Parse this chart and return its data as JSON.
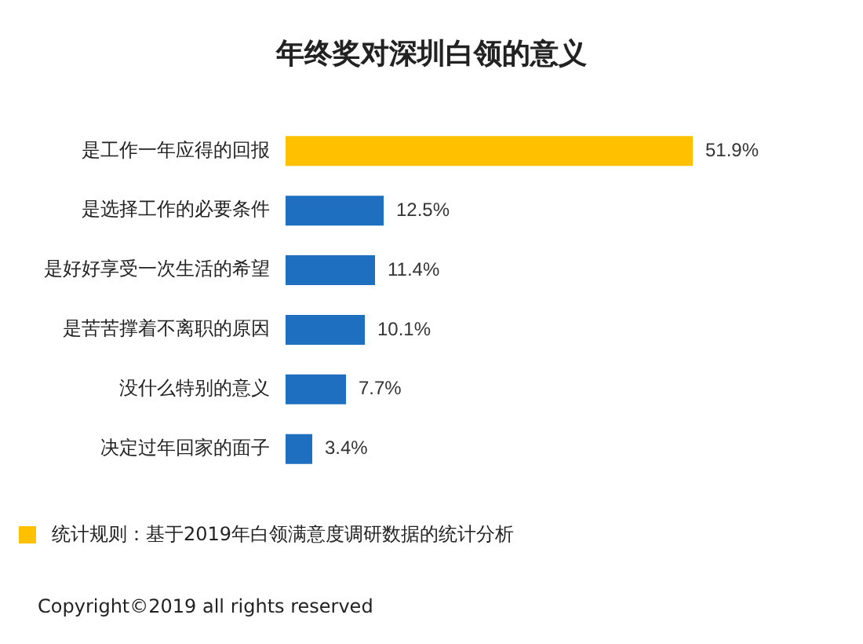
{
  "chart_data": {
    "type": "bar",
    "orientation": "horizontal",
    "title": "年终奖对深圳白领的意义",
    "categories": [
      "是工作一年应得的回报",
      "是选择工作的必要条件",
      "是好好享受一次生活的希望",
      "是苦苦撑着不离职的原因",
      "没什么特别的意义",
      "决定过年回家的面子"
    ],
    "values": [
      51.9,
      12.5,
      11.4,
      10.1,
      7.7,
      3.4
    ],
    "colors": [
      "#ffc000",
      "#1f6fc0",
      "#1f6fc0",
      "#1f6fc0",
      "#1f6fc0",
      "#1f6fc0"
    ],
    "value_labels": [
      "51.9%",
      "12.5%",
      "11.4%",
      "10.1%",
      "7.7%",
      "3.4%"
    ],
    "annotations": [
      "统计规则：基于2019年白领满意度调研数据的统计分析",
      "Copyright©2019 all rights reserved"
    ],
    "grid": false,
    "legend": false
  }
}
